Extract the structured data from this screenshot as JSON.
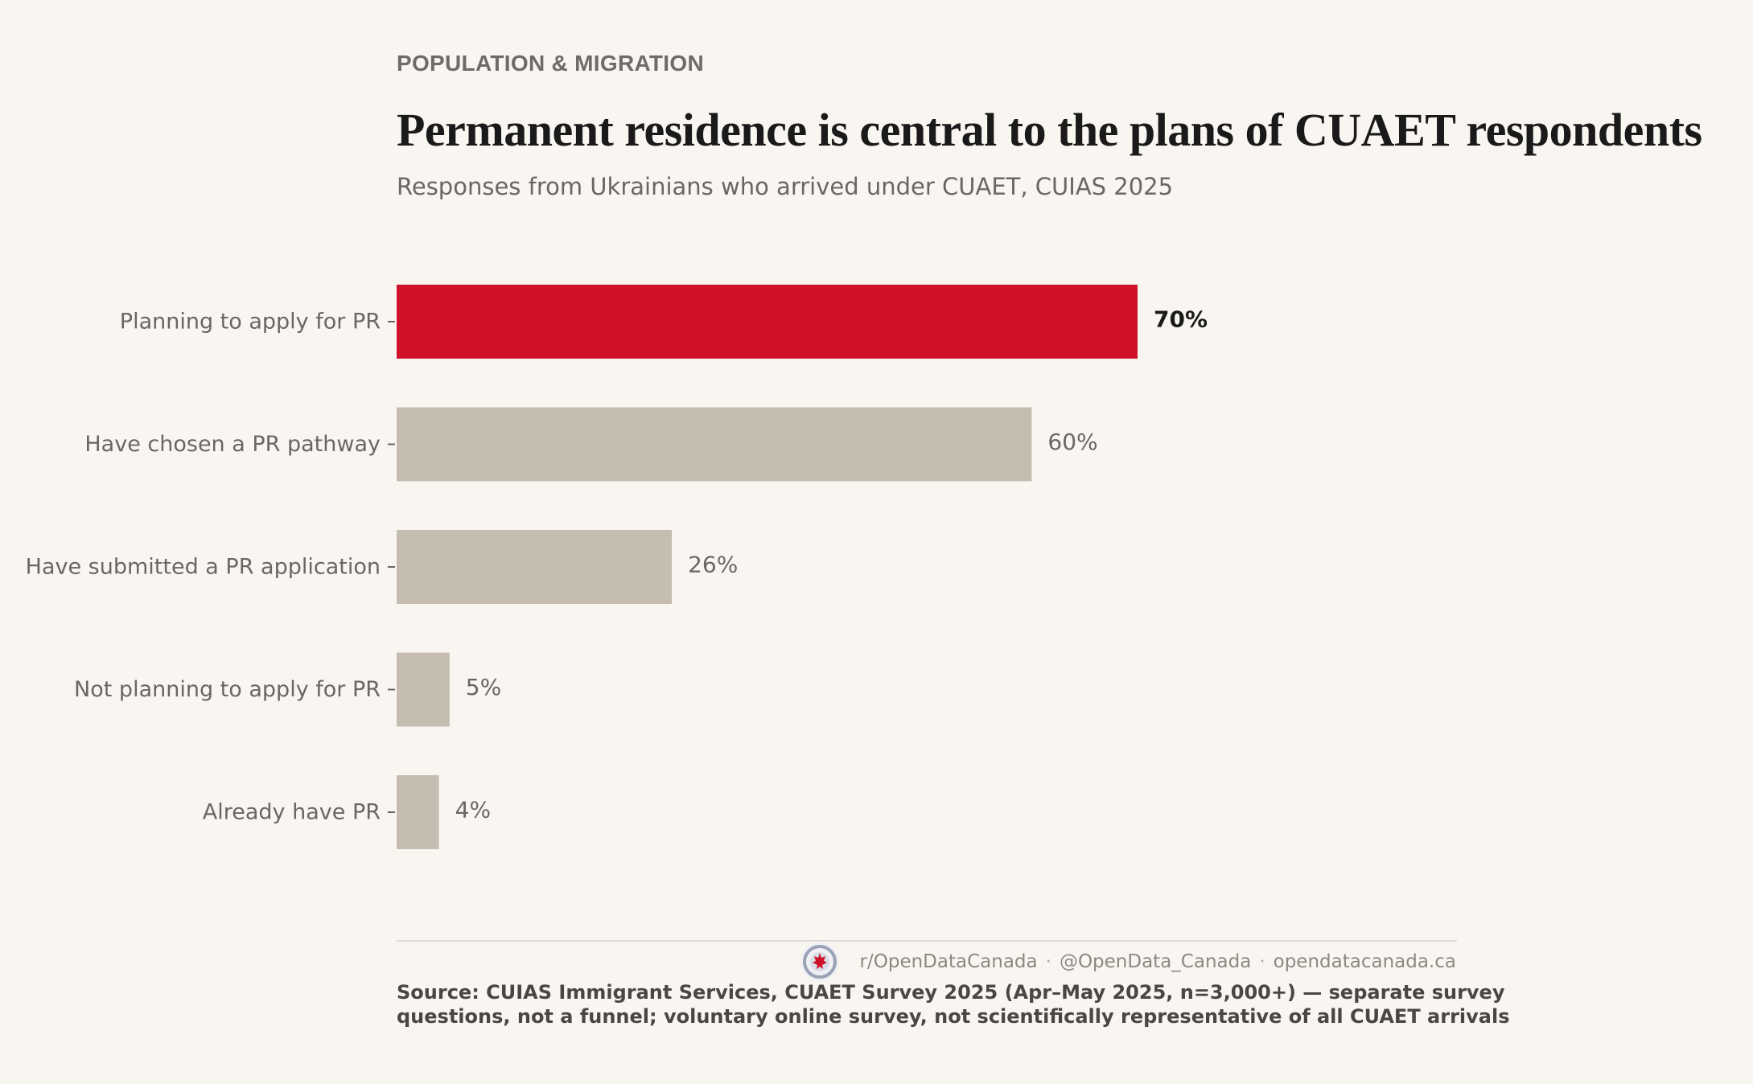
{
  "header": {
    "kicker": "POPULATION & MIGRATION",
    "title": "Permanent residence is central to the plans of CUAET respondents",
    "subtitle": "Responses from Ukrainians who arrived under CUAET, CUIAS 2025"
  },
  "chart_data": {
    "type": "bar",
    "orientation": "horizontal",
    "categories": [
      "Planning to apply for PR",
      "Have chosen a PR pathway",
      "Have submitted a PR application",
      "Not planning to apply for PR",
      "Already have PR"
    ],
    "values": [
      70,
      60,
      26,
      5,
      4
    ],
    "value_labels": [
      "70%",
      "60%",
      "26%",
      "5%",
      "4%"
    ],
    "unit": "%",
    "highlight_index": 0,
    "xlim": [
      0,
      100
    ],
    "colors": {
      "highlight": "#cf1228",
      "default": "#c5bdb0"
    },
    "grid": false,
    "legend": "none"
  },
  "footer": {
    "links": [
      "r/OpenDataCanada",
      "@OpenData_Canada",
      "opendatacanada.ca"
    ],
    "separator": "·",
    "logo_icon": "open-data-canada-logo",
    "source": "Source: CUIAS Immigrant Services, CUAET Survey 2025 (Apr–May 2025, n=3,000+) — separate survey questions, not a funnel; voluntary online survey, not scientifically representative of all CUAET arrivals"
  }
}
